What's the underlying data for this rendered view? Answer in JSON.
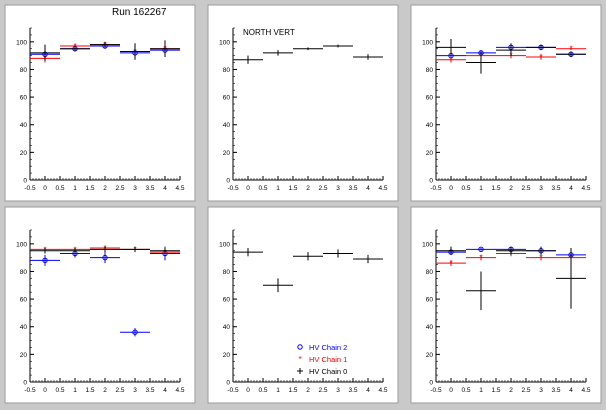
{
  "canvas_title": "Run 162267",
  "colors": {
    "chain2": "#0000ff",
    "chain1": "#ff0000",
    "chain0": "#000000",
    "panel_background": "#ffffff",
    "canvas_background": "#c9c9c9"
  },
  "legend": {
    "entries": [
      {
        "label": "HV Chain 2",
        "color": "#0000ff",
        "marker": "open-circle"
      },
      {
        "label": "HV Chain 1",
        "color": "#ff0000",
        "marker": "star"
      },
      {
        "label": "HV Chain 0",
        "color": "#000000",
        "marker": "plus"
      }
    ],
    "placement": "bottom-right of panel 5"
  },
  "chart_data": [
    {
      "type": "scatter",
      "title": "",
      "annotation": "",
      "xlim": [
        -0.5,
        4.5
      ],
      "ylim": [
        0,
        110
      ],
      "xticks": [
        "-0.5",
        "0",
        "0.5",
        "1",
        "1.5",
        "2",
        "2.5",
        "3",
        "3.5",
        "4",
        "4.5"
      ],
      "yticks": [
        "0",
        "20",
        "40",
        "60",
        "80",
        "100"
      ],
      "series": [
        {
          "color": "chain2",
          "marker": "circle",
          "x": [
            0,
            1,
            2,
            3,
            4
          ],
          "y": [
            91,
            95,
            97,
            92,
            94
          ],
          "yerr": [
            4,
            2,
            2,
            3,
            3
          ]
        },
        {
          "color": "chain1",
          "marker": "star",
          "x": [
            0,
            1,
            2,
            3,
            4
          ],
          "y": [
            88,
            97,
            98,
            93,
            95
          ],
          "yerr": [
            3,
            1,
            1,
            1,
            1
          ]
        },
        {
          "color": "chain0",
          "marker": "plus",
          "x": [
            0,
            1,
            2,
            3,
            4
          ],
          "y": [
            92,
            95,
            98,
            93,
            95
          ],
          "yerr": [
            6,
            2,
            2,
            6,
            6
          ]
        }
      ]
    },
    {
      "type": "scatter",
      "title": "",
      "annotation": "NORTH VERT",
      "xlim": [
        -0.5,
        4.5
      ],
      "ylim": [
        0,
        110
      ],
      "xticks": [
        "-0.5",
        "0",
        "0.5",
        "1",
        "1.5",
        "2",
        "2.5",
        "3",
        "3.5",
        "4",
        "4.5"
      ],
      "yticks": [
        "0",
        "20",
        "40",
        "60",
        "80",
        "100"
      ],
      "series": [
        {
          "color": "chain0",
          "marker": "plus",
          "x": [
            0,
            1,
            2,
            3,
            4
          ],
          "y": [
            87,
            92,
            95,
            97,
            89
          ],
          "yerr": [
            3,
            2,
            1,
            1,
            2
          ]
        }
      ]
    },
    {
      "type": "scatter",
      "title": "",
      "annotation": "",
      "xlim": [
        -0.5,
        4.5
      ],
      "ylim": [
        0,
        110
      ],
      "xticks": [
        "-0.5",
        "0",
        "0.5",
        "1",
        "1.5",
        "2",
        "2.5",
        "3",
        "3.5",
        "4",
        "4.5"
      ],
      "yticks": [
        "0",
        "20",
        "40",
        "60",
        "80",
        "100"
      ],
      "series": [
        {
          "color": "chain2",
          "marker": "circle",
          "x": [
            0,
            1,
            2,
            3,
            4
          ],
          "y": [
            90,
            92,
            96,
            96,
            91
          ],
          "yerr": [
            3,
            2,
            3,
            1,
            2
          ]
        },
        {
          "color": "chain1",
          "marker": "star",
          "x": [
            0,
            1,
            2,
            3,
            4
          ],
          "y": [
            87,
            90,
            90,
            89,
            95
          ],
          "yerr": [
            2,
            2,
            2,
            2,
            1
          ]
        },
        {
          "color": "chain0",
          "marker": "plus",
          "x": [
            0,
            1,
            2,
            3,
            4
          ],
          "y": [
            96,
            85,
            94,
            96,
            91
          ],
          "yerr": [
            6,
            8,
            4,
            2,
            2
          ]
        }
      ]
    },
    {
      "type": "scatter",
      "title": "",
      "annotation": "",
      "xlim": [
        -0.5,
        4.5
      ],
      "ylim": [
        0,
        110
      ],
      "xticks": [
        "-0.5",
        "0",
        "0.5",
        "1",
        "1.5",
        "2",
        "2.5",
        "3",
        "3.5",
        "4",
        "4.5"
      ],
      "yticks": [
        "0",
        "20",
        "40",
        "60",
        "80",
        "100"
      ],
      "series": [
        {
          "color": "chain2",
          "marker": "circle",
          "x": [
            0,
            1,
            2,
            3,
            4
          ],
          "y": [
            88,
            93,
            90,
            36,
            93
          ],
          "yerr": [
            4,
            3,
            4,
            3,
            5
          ]
        },
        {
          "color": "chain1",
          "marker": "star",
          "x": [
            0,
            1,
            2,
            3,
            4
          ],
          "y": [
            96,
            96,
            97,
            96,
            94
          ],
          "yerr": [
            1,
            1,
            1,
            1,
            1
          ]
        },
        {
          "color": "chain0",
          "marker": "plus",
          "x": [
            0,
            1,
            2,
            3,
            4
          ],
          "y": [
            95,
            95,
            96,
            96,
            95
          ],
          "yerr": [
            2,
            2,
            2,
            2,
            2
          ]
        }
      ]
    },
    {
      "type": "scatter",
      "title": "",
      "annotation": "",
      "xlim": [
        -0.5,
        4.5
      ],
      "ylim": [
        0,
        110
      ],
      "xticks": [
        "-0.5",
        "0",
        "0.5",
        "1",
        "1.5",
        "2",
        "2.5",
        "3",
        "3.5",
        "4",
        "4.5"
      ],
      "yticks": [
        "0",
        "20",
        "40",
        "60",
        "80",
        "100"
      ],
      "series": [
        {
          "color": "chain0",
          "marker": "plus",
          "x": [
            0,
            1,
            2,
            3,
            4
          ],
          "y": [
            94,
            70,
            91,
            93,
            89
          ],
          "yerr": [
            3,
            5,
            3,
            3,
            3
          ]
        }
      ]
    },
    {
      "type": "scatter",
      "title": "",
      "annotation": "",
      "xlim": [
        -0.5,
        4.5
      ],
      "ylim": [
        0,
        110
      ],
      "xticks": [
        "-0.5",
        "0",
        "0.5",
        "1",
        "1.5",
        "2",
        "2.5",
        "3",
        "3.5",
        "4",
        "4.5"
      ],
      "yticks": [
        "0",
        "20",
        "40",
        "60",
        "80",
        "100"
      ],
      "series": [
        {
          "color": "chain2",
          "marker": "circle",
          "x": [
            0,
            1,
            2,
            3,
            4
          ],
          "y": [
            94,
            96,
            96,
            95,
            92
          ],
          "yerr": [
            2,
            1,
            1,
            2,
            3
          ]
        },
        {
          "color": "chain1",
          "marker": "star",
          "x": [
            0,
            1,
            2,
            3,
            4
          ],
          "y": [
            86,
            90,
            93,
            90,
            90
          ],
          "yerr": [
            2,
            2,
            2,
            2,
            2
          ]
        },
        {
          "color": "chain0",
          "marker": "plus",
          "x": [
            0,
            1,
            2,
            3,
            4
          ],
          "y": [
            95,
            66,
            95,
            95,
            75
          ],
          "yerr": [
            3,
            14,
            3,
            3,
            22
          ]
        }
      ]
    }
  ]
}
